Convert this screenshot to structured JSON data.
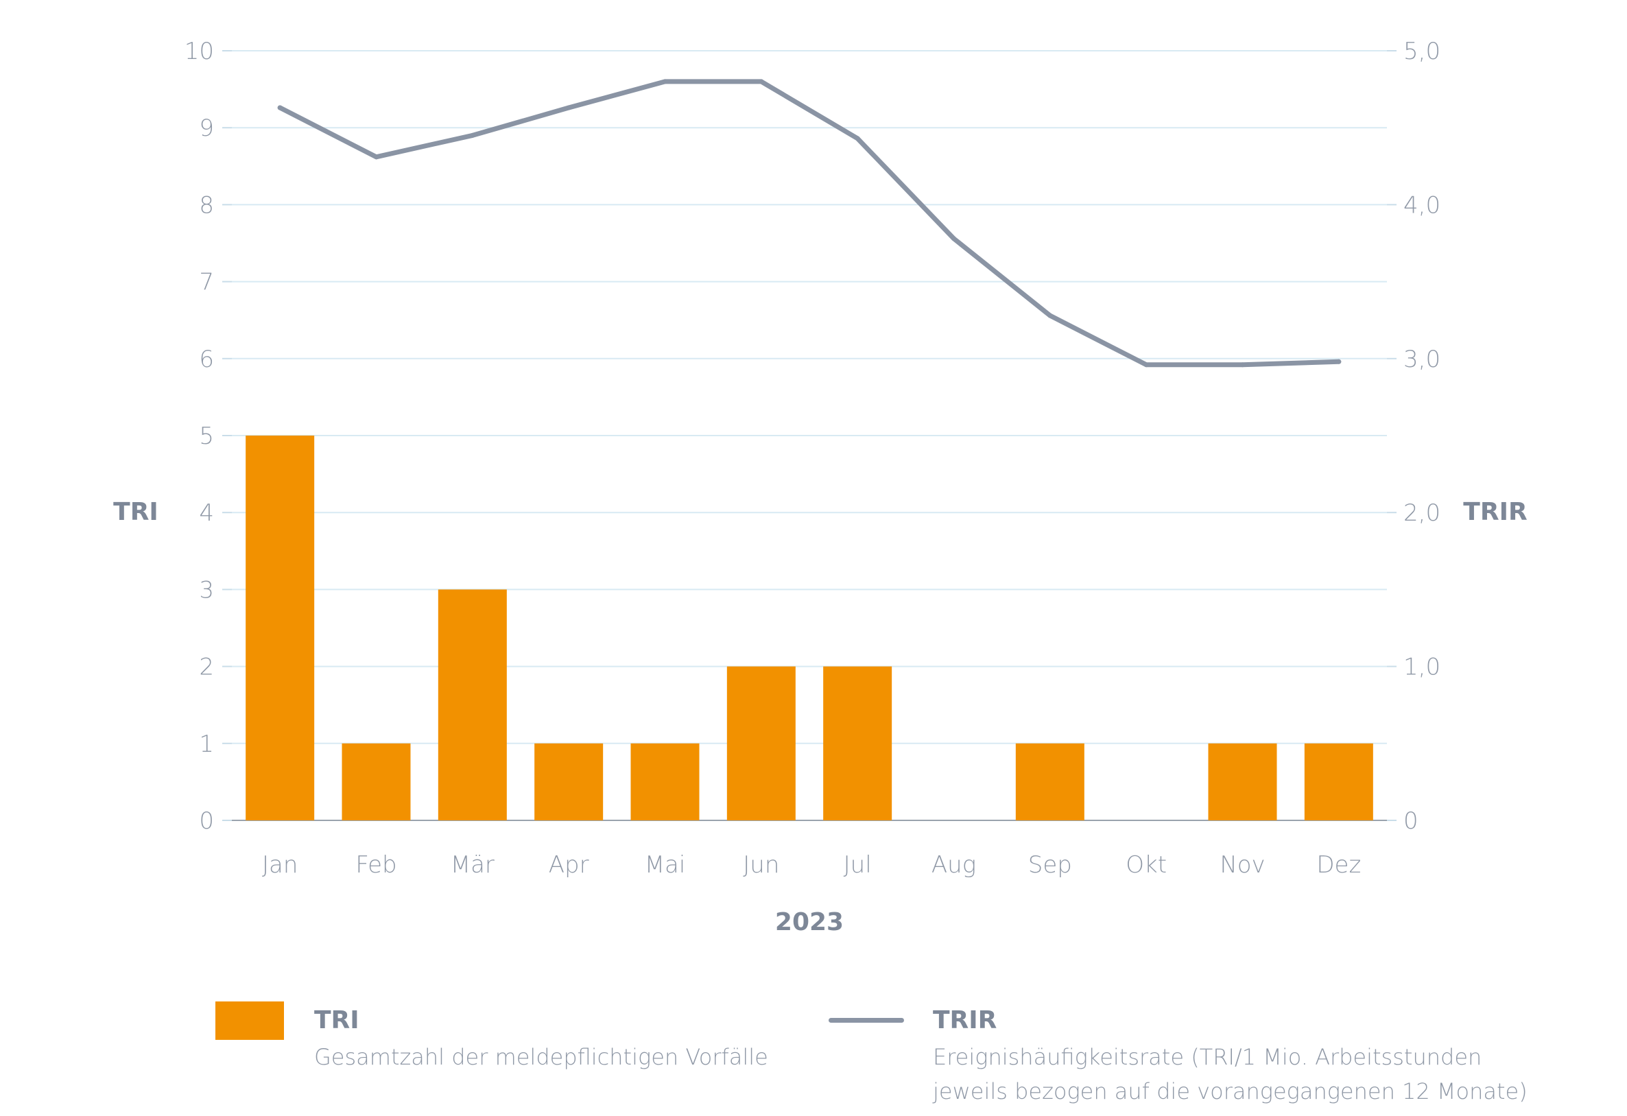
{
  "chart_data": {
    "type": "bar",
    "categories": [
      "Jan",
      "Feb",
      "Mär",
      "Apr",
      "Mai",
      "Jun",
      "Jul",
      "Aug",
      "Sep",
      "Okt",
      "Nov",
      "Dez"
    ],
    "xlabel": "2023",
    "ylabel_left": "TRI",
    "ylabel_right": "TRIR",
    "ylim_left": [
      0,
      10
    ],
    "ylim_right": [
      0,
      5
    ],
    "yticks_left": [
      "0",
      "1",
      "2",
      "3",
      "4",
      "5",
      "6",
      "7",
      "8",
      "9",
      "10"
    ],
    "yticks_right": [
      "0",
      "1,0",
      "2,0",
      "3,0",
      "4,0",
      "5,0"
    ],
    "grid": true,
    "series": [
      {
        "name": "TRI",
        "type": "bar",
        "axis": "left",
        "color": "#f29100",
        "values": [
          5,
          1,
          3,
          1,
          1,
          2,
          2,
          0,
          1,
          0,
          1,
          1
        ]
      },
      {
        "name": "TRIR",
        "type": "line",
        "axis": "right",
        "color": "#8a94a4",
        "values": [
          4.63,
          4.31,
          4.45,
          4.63,
          4.8,
          4.8,
          4.43,
          3.78,
          3.28,
          2.96,
          2.96,
          2.98
        ]
      }
    ]
  },
  "legend": {
    "tri": {
      "title": "TRI",
      "desc": "Gesamtzahl der meldepflichtigen Vorfälle",
      "color": "#f29100"
    },
    "trir": {
      "title": "TRIR",
      "desc_line1": "Ereignishäufigkeitsrate (TRI/1 Mio. Arbeitsstunden",
      "desc_line2": "jeweils bezogen auf die vorangegangenen 12 Monate)",
      "color": "#8a94a4"
    }
  }
}
